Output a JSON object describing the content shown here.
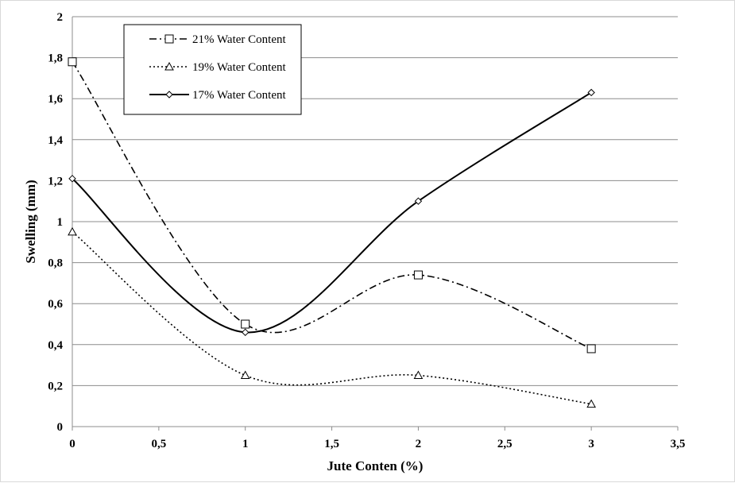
{
  "chart_data": {
    "type": "line",
    "title": "",
    "xlabel": "Jute Conten (%)",
    "ylabel": "Swelling (mm)",
    "xlim": [
      0,
      3.5
    ],
    "ylim": [
      0,
      2
    ],
    "x_ticks": [
      "0",
      "0,5",
      "1",
      "1,5",
      "2",
      "2,5",
      "3",
      "3,5"
    ],
    "y_ticks": [
      "0",
      "0,2",
      "0,4",
      "0,6",
      "0,8",
      "1",
      "1,2",
      "1,4",
      "1,6",
      "1,8",
      "2"
    ],
    "grid": "horizontal",
    "legend_position": "top-left",
    "smooth": true,
    "series": [
      {
        "name": "21% Water Content",
        "marker": "square",
        "line_style": "dash-dot",
        "color": "#000000",
        "x": [
          0,
          1,
          2,
          3
        ],
        "y": [
          1.78,
          0.5,
          0.74,
          0.38
        ]
      },
      {
        "name": "19% Water Content",
        "marker": "triangle",
        "line_style": "dotted",
        "color": "#000000",
        "x": [
          0,
          1,
          2,
          3
        ],
        "y": [
          0.95,
          0.25,
          0.25,
          0.11
        ]
      },
      {
        "name": "17% Water Content",
        "marker": "diamond",
        "line_style": "solid",
        "color": "#000000",
        "x": [
          0,
          1,
          2,
          3
        ],
        "y": [
          1.21,
          0.46,
          1.1,
          1.63
        ]
      }
    ]
  }
}
